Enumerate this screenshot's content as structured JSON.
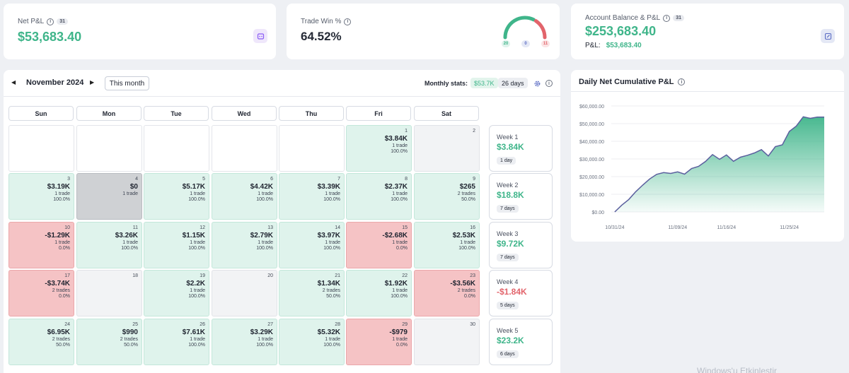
{
  "net_pnl": {
    "label": "Net P&L",
    "badge": "31",
    "value": "$53,683.40"
  },
  "trade_win": {
    "label": "Trade Win %",
    "value": "64.52%",
    "wins": "20",
    "neutral": "0",
    "losses": "11",
    "win_fraction": 0.6452
  },
  "account": {
    "label": "Account Balance & P&L",
    "badge": "31",
    "balance": "$253,683.40",
    "pnl_label": "P&L:",
    "pnl_value": "$53,683.40"
  },
  "calendar": {
    "month": "November 2024",
    "this_month": "This month",
    "monthly_stats_label": "Monthly stats:",
    "monthly_amount": "$53.7K",
    "monthly_days": "26 days",
    "days_of_week": [
      "Sun",
      "Mon",
      "Tue",
      "Wed",
      "Thu",
      "Fri",
      "Sat"
    ],
    "cells": [
      {
        "day": "",
        "amount": "",
        "trades": "",
        "winrate": "",
        "kind": "empty"
      },
      {
        "day": "",
        "amount": "",
        "trades": "",
        "winrate": "",
        "kind": "empty"
      },
      {
        "day": "",
        "amount": "",
        "trades": "",
        "winrate": "",
        "kind": "empty"
      },
      {
        "day": "",
        "amount": "",
        "trades": "",
        "winrate": "",
        "kind": "empty"
      },
      {
        "day": "",
        "amount": "",
        "trades": "",
        "winrate": "",
        "kind": "empty"
      },
      {
        "day": "1",
        "amount": "$3.84K",
        "trades": "1 trade",
        "winrate": "100.0%",
        "kind": "win"
      },
      {
        "day": "2",
        "amount": "",
        "trades": "",
        "winrate": "",
        "kind": "blank"
      },
      {
        "day": "3",
        "amount": "$3.19K",
        "trades": "1 trade",
        "winrate": "100.0%",
        "kind": "win"
      },
      {
        "day": "4",
        "amount": "$0",
        "trades": "1 trade",
        "winrate": "",
        "kind": "neutral"
      },
      {
        "day": "5",
        "amount": "$5.17K",
        "trades": "1 trade",
        "winrate": "100.0%",
        "kind": "win"
      },
      {
        "day": "6",
        "amount": "$4.42K",
        "trades": "1 trade",
        "winrate": "100.0%",
        "kind": "win"
      },
      {
        "day": "7",
        "amount": "$3.39K",
        "trades": "1 trade",
        "winrate": "100.0%",
        "kind": "win"
      },
      {
        "day": "8",
        "amount": "$2.37K",
        "trades": "1 trade",
        "winrate": "100.0%",
        "kind": "win"
      },
      {
        "day": "9",
        "amount": "$265",
        "trades": "2 trades",
        "winrate": "50.0%",
        "kind": "win"
      },
      {
        "day": "10",
        "amount": "-$1.29K",
        "trades": "1 trade",
        "winrate": "0.0%",
        "kind": "loss"
      },
      {
        "day": "11",
        "amount": "$3.26K",
        "trades": "1 trade",
        "winrate": "100.0%",
        "kind": "win"
      },
      {
        "day": "12",
        "amount": "$1.15K",
        "trades": "1 trade",
        "winrate": "100.0%",
        "kind": "win"
      },
      {
        "day": "13",
        "amount": "$2.79K",
        "trades": "1 trade",
        "winrate": "100.0%",
        "kind": "win"
      },
      {
        "day": "14",
        "amount": "$3.97K",
        "trades": "1 trade",
        "winrate": "100.0%",
        "kind": "win"
      },
      {
        "day": "15",
        "amount": "-$2.68K",
        "trades": "1 trade",
        "winrate": "0.0%",
        "kind": "loss"
      },
      {
        "day": "16",
        "amount": "$2.53K",
        "trades": "1 trade",
        "winrate": "100.0%",
        "kind": "win"
      },
      {
        "day": "17",
        "amount": "-$3.74K",
        "trades": "2 trades",
        "winrate": "0.0%",
        "kind": "loss"
      },
      {
        "day": "18",
        "amount": "",
        "trades": "",
        "winrate": "",
        "kind": "blank"
      },
      {
        "day": "19",
        "amount": "$2.2K",
        "trades": "1 trade",
        "winrate": "100.0%",
        "kind": "win"
      },
      {
        "day": "20",
        "amount": "",
        "trades": "",
        "winrate": "",
        "kind": "blank"
      },
      {
        "day": "21",
        "amount": "$1.34K",
        "trades": "2 trades",
        "winrate": "50.0%",
        "kind": "win"
      },
      {
        "day": "22",
        "amount": "$1.92K",
        "trades": "1 trade",
        "winrate": "100.0%",
        "kind": "win"
      },
      {
        "day": "23",
        "amount": "-$3.56K",
        "trades": "2 trades",
        "winrate": "0.0%",
        "kind": "loss"
      },
      {
        "day": "24",
        "amount": "$6.95K",
        "trades": "2 trades",
        "winrate": "50.0%",
        "kind": "win"
      },
      {
        "day": "25",
        "amount": "$990",
        "trades": "2 trades",
        "winrate": "50.0%",
        "kind": "win"
      },
      {
        "day": "26",
        "amount": "$7.61K",
        "trades": "1 trade",
        "winrate": "100.0%",
        "kind": "win"
      },
      {
        "day": "27",
        "amount": "$3.29K",
        "trades": "1 trade",
        "winrate": "100.0%",
        "kind": "win"
      },
      {
        "day": "28",
        "amount": "$5.32K",
        "trades": "1 trade",
        "winrate": "100.0%",
        "kind": "win"
      },
      {
        "day": "29",
        "amount": "-$979",
        "trades": "1 trade",
        "winrate": "0.0%",
        "kind": "loss"
      },
      {
        "day": "30",
        "amount": "",
        "trades": "",
        "winrate": "",
        "kind": "blank"
      }
    ],
    "weeks": [
      {
        "label": "Week 1",
        "amount": "$3.84K",
        "days": "1 day",
        "sign": "pos"
      },
      {
        "label": "Week 2",
        "amount": "$18.8K",
        "days": "7 days",
        "sign": "pos"
      },
      {
        "label": "Week 3",
        "amount": "$9.72K",
        "days": "7 days",
        "sign": "pos"
      },
      {
        "label": "Week 4",
        "amount": "-$1.84K",
        "days": "5 days",
        "sign": "neg"
      },
      {
        "label": "Week 5",
        "amount": "$23.2K",
        "days": "6 days",
        "sign": "pos"
      }
    ]
  },
  "chart_data": {
    "type": "area",
    "title": "Daily Net Cumulative P&L",
    "xlabel": "",
    "ylabel": "",
    "ylim": [
      0,
      60000
    ],
    "y_ticks": [
      "$0.00",
      "$10,000.00",
      "$20,000.00",
      "$30,000.00",
      "$40,000.00",
      "$50,000.00",
      "$60,000.00"
    ],
    "y_tick_values": [
      0,
      10000,
      20000,
      30000,
      40000,
      50000,
      60000
    ],
    "x_ticks": [
      "10/31/24",
      "11/09/24",
      "11/16/24",
      "11/25/24"
    ],
    "x_tick_days": [
      0,
      9,
      16,
      25
    ],
    "x_range_days": [
      -0.5,
      30
    ],
    "series": [
      {
        "name": "Cumulative P&L",
        "x_days": [
          0,
          1,
          2,
          3,
          4,
          5,
          6,
          7,
          8,
          9,
          10,
          11,
          12,
          13,
          14,
          15,
          16,
          17,
          18,
          19,
          20,
          21,
          22,
          23,
          24,
          25,
          26,
          27,
          28,
          29,
          30
        ],
        "values": [
          0,
          3840,
          7030,
          11450,
          15180,
          18700,
          21300,
          22300,
          21800,
          22700,
          21400,
          24600,
          25800,
          28600,
          32500,
          29800,
          32300,
          28700,
          31000,
          32100,
          33400,
          35300,
          31700,
          37000,
          38000,
          45600,
          48600,
          53900,
          53000,
          53683,
          53683
        ]
      }
    ],
    "colors": {
      "line": "#5b5f9e",
      "fill_top": "#3fb58a",
      "fill_bottom": "#ffffff"
    }
  },
  "watermark": "Windows'u Etkinleştir"
}
